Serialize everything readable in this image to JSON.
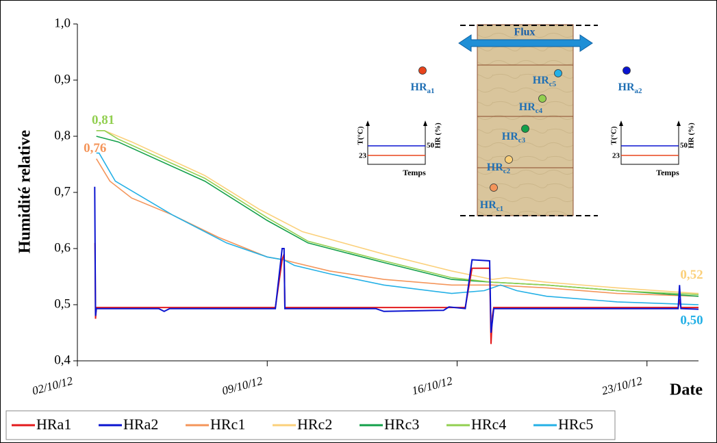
{
  "chart_data": {
    "type": "line",
    "ylabel": "Humidité relative",
    "xlabel": "Date",
    "xlim": [
      0,
      22.9
    ],
    "xticks": [
      {
        "value": 0,
        "label": "02/10/12"
      },
      {
        "value": 7,
        "label": "09/10/12"
      },
      {
        "value": 14,
        "label": "16/10/12"
      },
      {
        "value": 21,
        "label": "23/10/12"
      }
    ],
    "ylim": [
      0.4,
      1.0
    ],
    "yticks": [
      {
        "value": 0.4,
        "label": "0,4"
      },
      {
        "value": 0.5,
        "label": "0,5"
      },
      {
        "value": 0.6,
        "label": "0,6"
      },
      {
        "value": 0.7,
        "label": "0,7"
      },
      {
        "value": 0.8,
        "label": "0,8"
      },
      {
        "value": 0.9,
        "label": "0,9"
      },
      {
        "value": 1.0,
        "label": "1,0"
      }
    ],
    "series": [
      {
        "name": "HRa1",
        "color": "#e31a1c",
        "x": [
          0.65,
          0.67,
          0.7,
          7.3,
          7.55,
          7.62,
          7.65,
          14.3,
          14.55,
          15.2,
          15.25,
          15.3,
          15.35,
          22.15,
          22.2,
          22.25,
          22.9
        ],
        "values": [
          0.61,
          0.475,
          0.495,
          0.495,
          0.58,
          0.59,
          0.495,
          0.495,
          0.565,
          0.565,
          0.43,
          0.48,
          0.495,
          0.495,
          0.51,
          0.495,
          0.495
        ]
      },
      {
        "name": "HRa2",
        "color": "#0a14d0",
        "x": [
          0.64,
          0.67,
          0.7,
          3,
          3.2,
          3.4,
          7.3,
          7.55,
          7.62,
          7.65,
          11,
          11.3,
          13.5,
          13.7,
          14.3,
          14.55,
          15.2,
          15.25,
          15.3,
          15.35,
          22.15,
          22.2,
          22.25,
          22.9
        ],
        "values": [
          0.71,
          0.48,
          0.493,
          0.493,
          0.488,
          0.493,
          0.493,
          0.6,
          0.6,
          0.493,
          0.493,
          0.488,
          0.49,
          0.496,
          0.493,
          0.58,
          0.578,
          0.45,
          0.47,
          0.493,
          0.493,
          0.535,
          0.493,
          0.492
        ]
      },
      {
        "name": "HRc1",
        "color": "#f4955a",
        "x": [
          0.7,
          1.2,
          2,
          3.5,
          5.2,
          7,
          7.6,
          8,
          9.3,
          11.3,
          13.8,
          15.3,
          17.3,
          19.9,
          22.9
        ],
        "values": [
          0.76,
          0.72,
          0.69,
          0.66,
          0.62,
          0.585,
          0.58,
          0.575,
          0.56,
          0.545,
          0.535,
          0.535,
          0.53,
          0.52,
          0.515
        ],
        "value_labels": [
          "0,76",
          null,
          null,
          null,
          null,
          null,
          null,
          null,
          null,
          null,
          null,
          null,
          null,
          null,
          null
        ]
      },
      {
        "name": "HRc2",
        "color": "#fbd07a",
        "x": [
          0.7,
          1,
          2,
          4.7,
          6.7,
          8.3,
          11.3,
          13.8,
          15.3,
          15.8,
          17.3,
          19.9,
          22.9
        ],
        "values": [
          0.81,
          0.81,
          0.79,
          0.73,
          0.67,
          0.63,
          0.59,
          0.56,
          0.545,
          0.548,
          0.54,
          0.53,
          0.52
        ],
        "value_labels": [
          null,
          null,
          null,
          null,
          null,
          null,
          null,
          null,
          null,
          null,
          null,
          null,
          "0,52"
        ]
      },
      {
        "name": "HRc3",
        "color": "#13a04a",
        "x": [
          0.7,
          1.5,
          4.7,
          7,
          8.5,
          11.3,
          13.8,
          15.3,
          17.3,
          19.9,
          22.9
        ],
        "values": [
          0.8,
          0.79,
          0.72,
          0.65,
          0.61,
          0.575,
          0.545,
          0.54,
          0.535,
          0.525,
          0.515
        ]
      },
      {
        "name": "HRc4",
        "color": "#92cf50",
        "x": [
          0.7,
          1,
          1.5,
          4.7,
          7,
          8.5,
          11.3,
          13.8,
          15.3,
          17.3,
          19.9,
          22.9
        ],
        "values": [
          0.81,
          0.81,
          0.795,
          0.725,
          0.655,
          0.613,
          0.578,
          0.548,
          0.54,
          0.535,
          0.525,
          0.518
        ],
        "value_labels": [
          null,
          "0,81",
          null,
          null,
          null,
          null,
          null,
          null,
          null,
          null,
          null,
          null
        ]
      },
      {
        "name": "HRc5",
        "color": "#24b0e6",
        "x": [
          0.7,
          0.8,
          1.4,
          3.5,
          5.5,
          7,
          7.6,
          8,
          9.3,
          11.3,
          13.8,
          15,
          15.6,
          16.2,
          17.3,
          19.9,
          22.9
        ],
        "values": [
          0.77,
          0.77,
          0.72,
          0.66,
          0.61,
          0.585,
          0.58,
          0.57,
          0.555,
          0.535,
          0.52,
          0.525,
          0.535,
          0.525,
          0.515,
          0.505,
          0.5
        ],
        "value_labels": [
          null,
          null,
          null,
          null,
          null,
          null,
          null,
          null,
          null,
          null,
          null,
          null,
          null,
          null,
          null,
          null,
          "0,50"
        ]
      }
    ],
    "inset": {
      "flux": "Flux",
      "points": [
        {
          "base": "HR",
          "sub": "a1",
          "color": "#e8441c"
        },
        {
          "base": "HR",
          "sub": "a2",
          "color": "#0a14d0"
        },
        {
          "base": "HR",
          "sub": "c1",
          "color": "#f4955a"
        },
        {
          "base": "HR",
          "sub": "c2",
          "color": "#fbd07a"
        },
        {
          "base": "HR",
          "sub": "c3",
          "color": "#13a04a"
        },
        {
          "base": "HR",
          "sub": "c4",
          "color": "#92cf50"
        },
        {
          "base": "HR",
          "sub": "c5",
          "color": "#24b0e6"
        }
      ],
      "mini": {
        "left_axis": "T(°C)",
        "right_axis": "HR (%)",
        "t": "23",
        "hr": "50",
        "time": "Temps"
      }
    }
  }
}
